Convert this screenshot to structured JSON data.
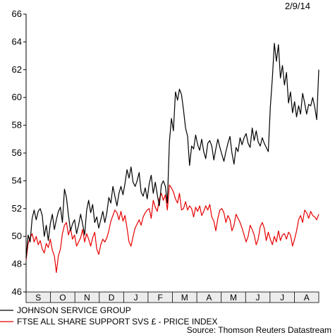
{
  "chart_data": {
    "type": "line",
    "date_label": "2/9/14",
    "source": "Source: Thomson Reuters Datastream",
    "ylim": [
      46,
      66
    ],
    "yticks": [
      "46",
      "48",
      "50",
      "52",
      "54",
      "56",
      "58",
      "60",
      "62",
      "64",
      "66"
    ],
    "x_months": [
      "S",
      "O",
      "N",
      "D",
      "J",
      "F",
      "M",
      "A",
      "M",
      "J",
      "J",
      "A"
    ],
    "legend_position": "bottom-left",
    "grid": false,
    "series": [
      {
        "name": "JOHNSON SERVICE GROUP",
        "color": "#000000",
        "x_start": "2013-09-02",
        "x_end": "2014-09-02",
        "values": [
          48.4,
          50.1,
          49.6,
          51.3,
          51.9,
          51.2,
          51.8,
          52.0,
          51.5,
          50.0,
          50.8,
          49.7,
          50.9,
          51.6,
          50.5,
          51.2,
          51.8,
          52.1,
          51.0,
          53.4,
          52.8,
          51.5,
          50.4,
          50.9,
          51.2,
          50.2,
          50.8,
          51.6,
          50.9,
          50.1,
          51.9,
          52.6,
          51.7,
          52.3,
          51.0,
          51.4,
          50.6,
          51.2,
          51.8,
          51.0,
          51.7,
          52.8,
          52.4,
          53.6,
          52.9,
          52.2,
          53.1,
          53.6,
          53.0,
          53.8,
          54.8,
          54.2,
          55.0,
          53.9,
          53.6,
          54.0,
          54.6,
          53.2,
          52.9,
          53.5,
          52.7,
          53.8,
          54.4,
          53.1,
          53.9,
          53.0,
          52.2,
          53.7,
          54.0,
          53.6,
          52.4,
          56.8,
          58.5,
          57.6,
          60.4,
          59.8,
          60.6,
          60.2,
          59.1,
          57.8,
          57.2,
          55.1,
          56.5,
          56.3,
          57.3,
          56.6,
          56.2,
          57.0,
          56.1,
          55.6,
          56.7,
          56.9,
          56.5,
          55.5,
          56.3,
          57.0,
          56.4,
          55.9,
          55.4,
          56.1,
          56.7,
          57.2,
          56.0,
          55.2,
          56.4,
          56.1,
          57.1,
          56.6,
          57.1,
          57.4,
          56.7,
          56.4,
          57.8,
          56.9,
          57.6,
          56.8,
          56.5,
          57.1,
          56.7,
          56.4,
          56.1,
          59.3,
          61.4,
          63.9,
          62.6,
          63.8,
          61.4,
          62.3,
          60.9,
          61.8,
          59.6,
          60.4,
          58.9,
          59.7,
          58.6,
          59.4,
          58.8,
          60.3,
          59.6,
          58.8,
          59.5,
          59.4,
          60.0,
          59.3,
          58.4,
          62.0
        ]
      },
      {
        "name": "FTSE ALL SHARE SUPPORT SVS £ - PRICE INDEX",
        "color": "#e60000",
        "x_start": "2013-09-02",
        "x_end": "2014-09-02",
        "values": [
          48.3,
          49.5,
          49.9,
          50.2,
          49.6,
          50.0,
          49.4,
          49.7,
          49.1,
          48.8,
          49.5,
          49.2,
          49.8,
          49.0,
          48.6,
          47.4,
          48.6,
          49.1,
          50.2,
          50.8,
          51.0,
          50.1,
          50.6,
          49.8,
          50.1,
          49.3,
          49.6,
          49.9,
          50.5,
          49.6,
          50.2,
          49.8,
          49.3,
          49.9,
          50.3,
          49.1,
          48.7,
          49.4,
          49.8,
          49.6,
          49.9,
          50.4,
          51.1,
          51.5,
          51.9,
          51.7,
          51.2,
          51.8,
          51.1,
          51.5,
          50.6,
          49.6,
          49.3,
          50.0,
          50.6,
          50.9,
          51.2,
          50.8,
          51.4,
          51.7,
          51.9,
          52.0,
          51.3,
          52.6,
          52.1,
          51.8,
          52.7,
          53.1,
          52.6,
          53.0,
          51.9,
          53.7,
          53.5,
          53.2,
          52.7,
          52.4,
          53.1,
          51.9,
          52.0,
          52.5,
          51.9,
          52.2,
          52.0,
          51.4,
          52.1,
          51.8,
          52.2,
          51.5,
          51.8,
          52.2,
          51.9,
          52.3,
          51.4,
          51.1,
          50.4,
          51.3,
          51.9,
          52.0,
          51.7,
          51.0,
          51.5,
          51.2,
          50.4,
          50.8,
          51.6,
          51.3,
          51.0,
          50.6,
          50.1,
          49.6,
          50.0,
          50.8,
          50.5,
          50.1,
          49.4,
          49.8,
          50.7,
          51.0,
          50.6,
          49.7,
          50.3,
          49.8,
          49.4,
          50.0,
          49.6,
          50.4,
          49.7,
          50.1,
          50.2,
          49.8,
          50.3,
          50.1,
          49.3,
          49.8,
          50.4,
          51.2,
          51.5,
          51.0,
          51.9,
          51.7,
          51.3,
          51.8,
          51.5,
          51.4,
          51.2,
          51.6
        ]
      }
    ]
  }
}
